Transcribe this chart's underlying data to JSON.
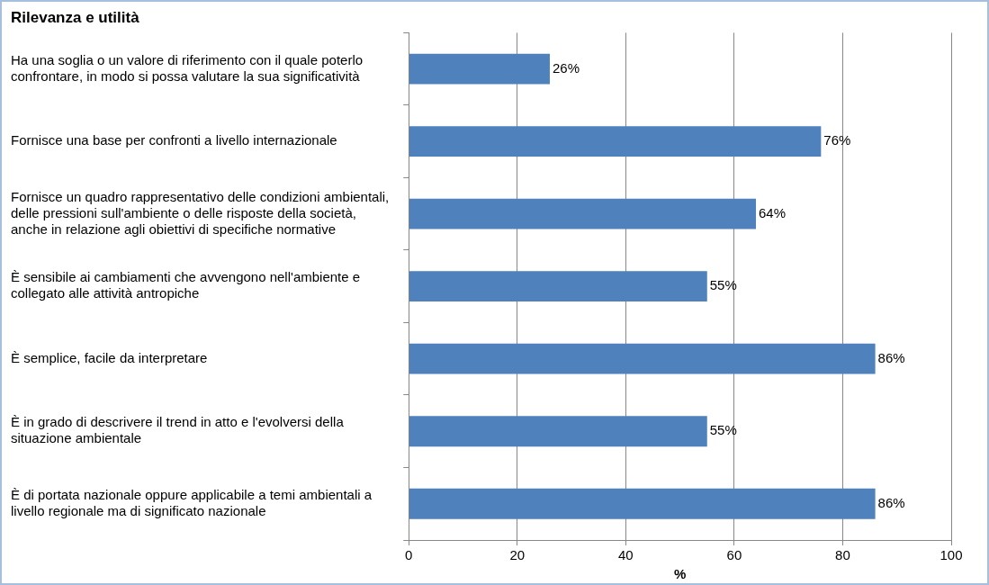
{
  "chart_data": {
    "type": "bar",
    "orientation": "horizontal",
    "title": "Rilevanza e utilità",
    "xlabel": "%",
    "categories": [
      "Ha una soglia o un valore di riferimento con il quale poterlo\nconfrontare, in modo si possa valutare la sua significatività",
      "Fornisce una base per confronti a livello internazionale",
      "Fornisce un quadro rappresentativo delle condizioni ambientali,\ndelle pressioni sull'ambiente o delle risposte della società,\nanche in relazione agli obiettivi di specifiche normative",
      "È sensibile ai cambiamenti che avvengono nell'ambiente e\ncollegato alle attività antropiche",
      "È semplice, facile da interpretare",
      "È in grado di descrivere il trend in atto e l'evolversi della\nsituazione ambientale",
      "È di portata nazionale oppure applicabile a temi ambientali a\nlivello regionale ma di significato nazionale"
    ],
    "values": [
      26,
      76,
      64,
      55,
      86,
      55,
      86
    ],
    "value_labels": [
      "26%",
      "76%",
      "64%",
      "55%",
      "86%",
      "55%",
      "86%"
    ],
    "color": "#4f81bd",
    "xlim": [
      0,
      100
    ],
    "xticks": [
      0,
      20,
      40,
      60,
      80,
      100
    ],
    "grid": "x",
    "legend": false
  }
}
